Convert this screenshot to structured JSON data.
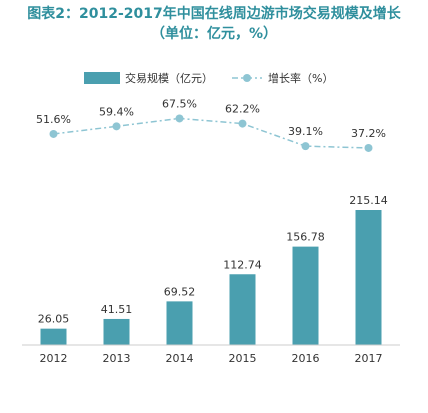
{
  "title": {
    "line1": "图表2：2012-2017年中国在线周边游市场交易规模及增长",
    "line2": "（单位：亿元，%）"
  },
  "chart_data": {
    "type": "bar",
    "categories": [
      "2012",
      "2013",
      "2014",
      "2015",
      "2016",
      "2017"
    ],
    "series": [
      {
        "name": "交易规模（亿元）",
        "type": "bar",
        "values": [
          26.05,
          41.51,
          69.52,
          112.74,
          156.78,
          215.14
        ],
        "labels": [
          "26.05",
          "41.51",
          "69.52",
          "112.74",
          "156.78",
          "215.14"
        ],
        "color": "#4a9faf"
      },
      {
        "name": "增长率（%）",
        "type": "line",
        "values": [
          51.6,
          59.4,
          67.5,
          62.2,
          39.1,
          37.2
        ],
        "labels": [
          "51.6%",
          "59.4%",
          "67.5%",
          "62.2%",
          "39.1%",
          "37.2%"
        ],
        "color": "#8ec5d3"
      }
    ],
    "legend_position": "top",
    "grid": false
  }
}
